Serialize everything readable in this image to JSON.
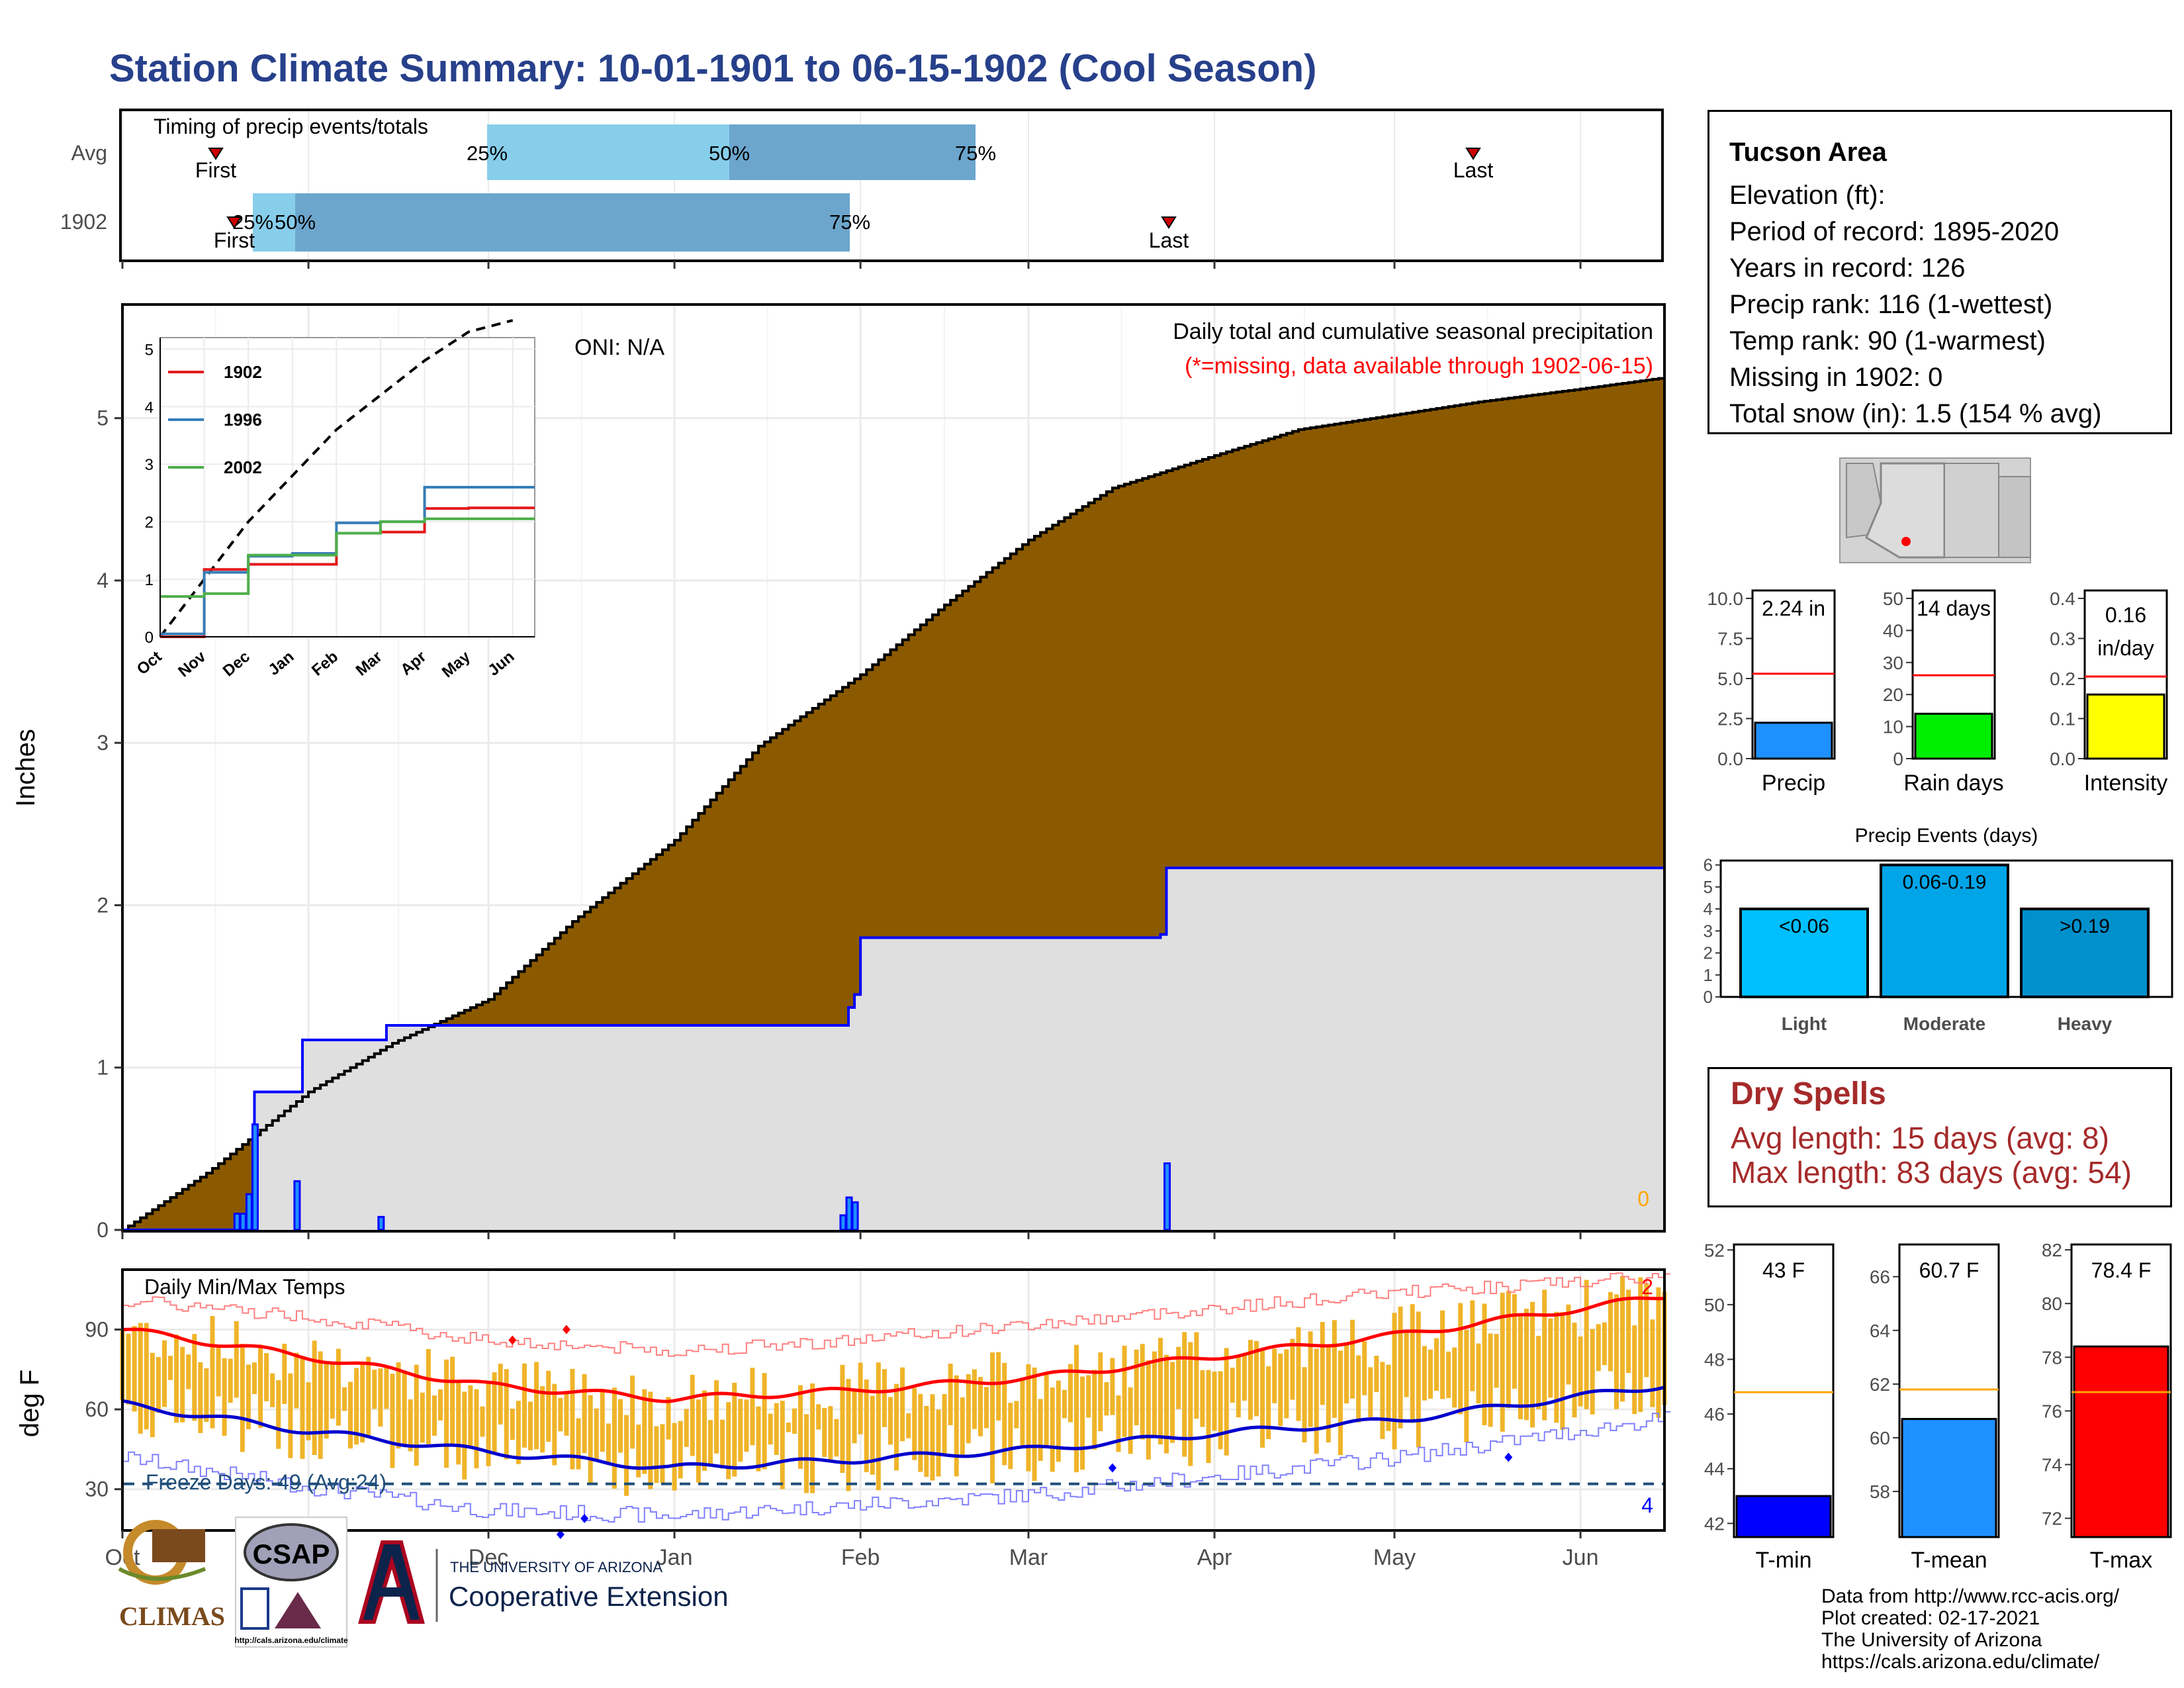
{
  "title": "Station Climate Summary: 10-01-1901 to 06-15-1902 (Cool Season)",
  "timing_panel": {
    "label": "Timing of precip events/totals",
    "rows": [
      "Avg",
      "1902"
    ],
    "first_label": "First",
    "last_label": "Last",
    "pct_labels": [
      "25%",
      "50%",
      "75%"
    ]
  },
  "main_panel": {
    "ylabel": "Inches",
    "oni": "ONI: N/A",
    "subtitle": "Daily total and cumulative seasonal precipitation",
    "missing_note": "(*=missing, data available through 1902-06-15)",
    "missing_count": "0",
    "yticks": [
      "0",
      "1",
      "2",
      "3",
      "4",
      "5"
    ]
  },
  "x_months": [
    "Oct",
    "Nov",
    "Dec",
    "Jan",
    "Feb",
    "Mar",
    "Apr",
    "May",
    "Jun"
  ],
  "inset": {
    "months": [
      "Oct",
      "Nov",
      "Dec",
      "Jan",
      "Feb",
      "Mar",
      "Apr",
      "May",
      "Jun"
    ],
    "yticks": [
      "0",
      "1",
      "2",
      "3",
      "4",
      "5"
    ],
    "legend": [
      {
        "name": "1902",
        "color": "#e41a1c"
      },
      {
        "name": "1996",
        "color": "#377eb8"
      },
      {
        "name": "2002",
        "color": "#4daf4a"
      }
    ]
  },
  "temp_panel": {
    "label": "Daily Min/Max Temps",
    "ylabel": "deg F",
    "yticks": [
      "30",
      "60",
      "90"
    ],
    "freeze": "Freeze Days: 49 (Avg:24)",
    "record_high_count": "2",
    "record_low_count": "4"
  },
  "station": {
    "name": "Tucson Area",
    "lines": [
      "Elevation (ft):",
      "Period of record: 1895-2020",
      "Years in record: 126",
      "Precip rank: 116 (1-wettest)",
      "Temp rank: 90 (1-warmest)",
      "Missing in 1902: 0",
      "Total snow (in): 1.5 (154 % avg)"
    ]
  },
  "mini_bars": [
    {
      "label": "Precip",
      "value_text": "2.24 in",
      "value": 2.24,
      "avg": 5.3,
      "ymax": 10,
      "ticks": [
        "0.0",
        "2.5",
        "5.0",
        "7.5",
        "10.0"
      ],
      "color": "#1e90ff"
    },
    {
      "label": "Rain days",
      "value_text": "14 days",
      "value": 14,
      "avg": 26,
      "ymax": 50,
      "ticks": [
        "0",
        "10",
        "20",
        "30",
        "40",
        "50"
      ],
      "color": "#00ee00"
    },
    {
      "label": "Intensity",
      "value_text": "0.16 in/day",
      "value": 0.16,
      "avg": 0.205,
      "ymax": 0.4,
      "ticks": [
        "0.0",
        "0.1",
        "0.2",
        "0.3",
        "0.4"
      ],
      "color": "#ffff00"
    }
  ],
  "precip_events": {
    "title": "Precip Events (days)",
    "categories": [
      "Light",
      "Moderate",
      "Heavy"
    ],
    "bar_labels": [
      "<0.06",
      "0.06-0.19",
      ">0.19"
    ],
    "values": [
      4,
      6,
      4
    ],
    "colors": [
      "#00bfff",
      "#00a5e8",
      "#0090cc"
    ],
    "yticks": [
      "0",
      "1",
      "2",
      "3",
      "4",
      "5",
      "6"
    ]
  },
  "dry_spells": {
    "title": "Dry Spells",
    "avg": "Avg length: 15 days (avg: 8)",
    "max": "Max length: 83 days (avg: 54)"
  },
  "temp_bars": [
    {
      "label": "T-min",
      "value_text": "43 F",
      "value": 43,
      "avg": 46.8,
      "ylim": [
        41.5,
        52.2
      ],
      "ticks": [
        "42",
        "44",
        "46",
        "48",
        "50",
        "52"
      ],
      "color": "#0000ff"
    },
    {
      "label": "T-mean",
      "value_text": "60.7 F",
      "value": 60.7,
      "avg": 61.8,
      "ylim": [
        56.3,
        67.2
      ],
      "ticks": [
        "58",
        "60",
        "62",
        "64",
        "66"
      ],
      "color": "#1e90ff"
    },
    {
      "label": "T-max",
      "value_text": "78.4 F",
      "value": 78.4,
      "avg": 76.7,
      "ylim": [
        71.3,
        82.2
      ],
      "ticks": [
        "72",
        "74",
        "76",
        "78",
        "80",
        "82"
      ],
      "color": "#ff0000"
    }
  ],
  "logos": {
    "climas": "CLIMAS",
    "csap": "CSAP",
    "csap_url": "http://cals.arizona.edu/climate",
    "univ": "THE UNIVERSITY OF ARIZONA",
    "ext": "Cooperative Extension"
  },
  "credits": [
    "Data from http://www.rcc-acis.org/",
    "Plot created: 02-17-2021",
    "The University of Arizona",
    "https://cals.arizona.edu/climate/"
  ],
  "chart_data": [
    {
      "type": "area",
      "title": "Daily total and cumulative seasonal precipitation",
      "ylabel": "Inches",
      "ylim": [
        0,
        5.7
      ],
      "x_range": [
        "1901-10-01",
        "1902-06-15"
      ],
      "series": [
        {
          "name": "",
          "kind": "average cumulative",
          "x": [
            "1901-10-01",
            "1901-10-15",
            "1901-11-01",
            "1901-11-15",
            "1901-12-01",
            "1901-12-15",
            "1902-01-01",
            "1902-01-15",
            "1902-02-01",
            "1902-02-15",
            "1902-03-01",
            "1902-03-15",
            "1902-04-01",
            "1902-04-15",
            "1902-05-01",
            "1902-05-15",
            "1902-06-01",
            "1902-06-15"
          ],
          "values": [
            0,
            0.35,
            0.85,
            1.15,
            1.42,
            1.9,
            2.4,
            2.98,
            3.42,
            3.85,
            4.25,
            4.57,
            4.77,
            4.93,
            5.02,
            5.1,
            5.18,
            5.25
          ]
        },
        {
          "name": "1902",
          "kind": "observed cumulative",
          "x": [
            "1901-10-01",
            "1901-10-22",
            "1901-10-23",
            "1901-10-24",
            "1901-10-30",
            "1901-10-31",
            "1901-11-13",
            "1901-11-14",
            "1902-01-29",
            "1902-01-30",
            "1902-01-31",
            "1902-02-01",
            "1902-03-23",
            "1902-03-24",
            "1902-06-15"
          ],
          "values": [
            0,
            0,
            0.85,
            0.85,
            0.85,
            1.17,
            1.17,
            1.26,
            1.26,
            1.37,
            1.45,
            1.8,
            1.82,
            2.23,
            2.24
          ]
        }
      ],
      "daily_bars": {
        "x": [
          "1901-10-20",
          "1901-10-21",
          "1901-10-22",
          "1901-10-23",
          "1901-10-30",
          "1901-11-13",
          "1902-01-29",
          "1902-01-30",
          "1902-01-31",
          "1902-03-24"
        ],
        "values": [
          0.1,
          0.1,
          0.22,
          0.65,
          0.3,
          0.08,
          0.09,
          0.2,
          0.17,
          0.41
        ]
      }
    },
    {
      "type": "line",
      "title": "",
      "x": [
        "Oct",
        "Nov",
        "Dec",
        "Jan",
        "Feb",
        "Mar",
        "Apr",
        "May",
        "Jun"
      ],
      "ylim": [
        0,
        5.2
      ],
      "series": [
        {
          "name": "",
          "values": [
            0,
            1.0,
            2.0,
            2.8,
            3.6,
            4.2,
            4.8,
            5.3,
            5.5
          ]
        },
        {
          "name": "1902",
          "values": [
            0,
            1.17,
            1.26,
            1.26,
            1.8,
            1.82,
            2.23,
            2.24,
            2.24
          ]
        },
        {
          "name": "1996",
          "values": [
            0.05,
            1.12,
            1.4,
            1.45,
            1.98,
            2.0,
            2.6,
            2.6,
            2.6
          ]
        },
        {
          "name": "2002",
          "values": [
            0.7,
            0.75,
            1.42,
            1.42,
            1.8,
            2.0,
            2.05,
            2.05,
            2.05
          ]
        }
      ]
    },
    {
      "type": "bar",
      "title": "Daily Min/Max Temps",
      "ylabel": "deg F",
      "ylim": [
        15,
        112
      ],
      "x": [
        "Oct",
        "Nov",
        "Dec",
        "Jan",
        "Feb",
        "Mar",
        "Apr",
        "May",
        "Jun"
      ],
      "series": [
        {
          "name": "",
          "kind": "normal max",
          "values": [
            90,
            80,
            69,
            64,
            67,
            72,
            80,
            88,
            98
          ]
        },
        {
          "name": "",
          "kind": "normal min",
          "values": [
            62,
            52,
            44,
            38,
            41,
            45,
            51,
            56,
            65
          ]
        },
        {
          "name": "",
          "kind": "record max",
          "values": [
            101,
            95,
            86,
            82,
            86,
            92,
            98,
            104,
            108
          ]
        },
        {
          "name": "",
          "kind": "record min",
          "values": [
            42,
            31,
            22,
            20,
            24,
            28,
            35,
            42,
            52
          ]
        }
      ],
      "freeze_line": 32
    }
  ]
}
